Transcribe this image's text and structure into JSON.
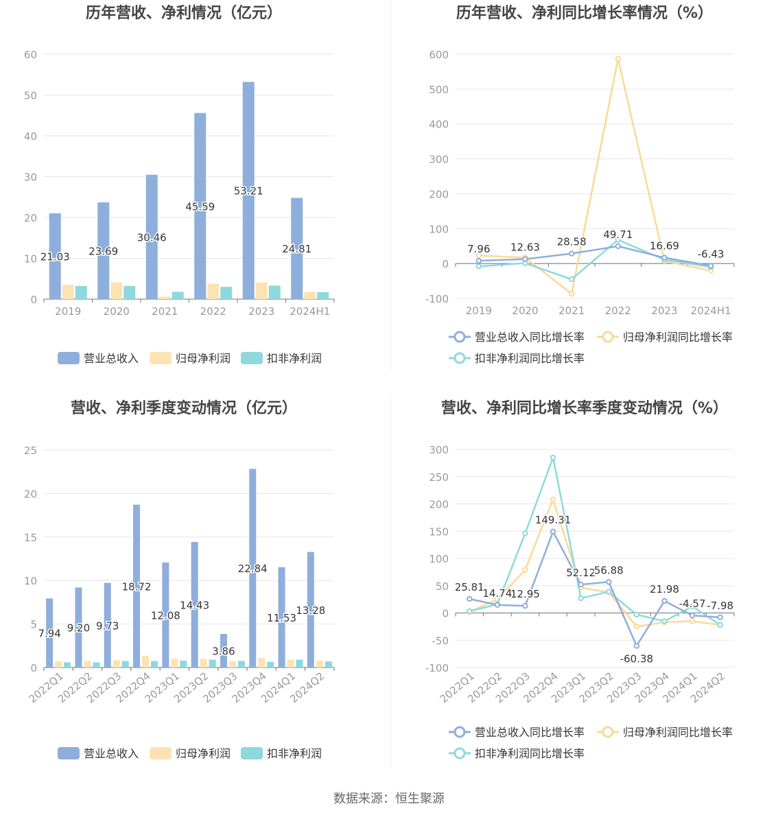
{
  "colors": {
    "revenue": "#8eaedc",
    "net_profit": "#fde3b4",
    "deducted_profit": "#8dd9dc",
    "revenue_line": "#8eaedc",
    "net_profit_line": "#fcd994",
    "deducted_profit_line": "#8dd9dc",
    "grid": "#e6e6ec",
    "axis_text": "#999999",
    "title": "#444444",
    "label": "#333333"
  },
  "footer": "数据来源：恒生聚源",
  "chart_data": [
    {
      "id": "annual-bar",
      "type": "bar",
      "title": "历年营收、净利情况（亿元）",
      "categories": [
        "2019",
        "2020",
        "2021",
        "2022",
        "2023",
        "2024H1"
      ],
      "ylim": [
        0,
        60
      ],
      "yticks": [
        0,
        10,
        20,
        30,
        40,
        50,
        60
      ],
      "grid": true,
      "legend_position": "bottom",
      "series": [
        {
          "name": "营业总收入",
          "values": [
            21.03,
            23.69,
            30.46,
            45.59,
            53.21,
            24.81
          ],
          "labels": [
            "21.03",
            "23.69",
            "30.46",
            "45.59",
            "53.21",
            "24.81"
          ]
        },
        {
          "name": "归母净利润",
          "values": [
            3.5,
            4.1,
            0.6,
            3.8,
            4.1,
            1.8
          ]
        },
        {
          "name": "扣非净利润",
          "values": [
            3.2,
            3.2,
            1.8,
            3.0,
            3.3,
            1.7
          ]
        }
      ]
    },
    {
      "id": "annual-line",
      "type": "line",
      "title": "历年营收、净利同比增长率情况（%）",
      "categories": [
        "2019",
        "2020",
        "2021",
        "2022",
        "2023",
        "2024H1"
      ],
      "ylim": [
        -100,
        600
      ],
      "yticks": [
        -100,
        0,
        100,
        200,
        300,
        400,
        500,
        600
      ],
      "grid": true,
      "legend_position": "bottom",
      "series": [
        {
          "name": "营业总收入同比增长率",
          "values": [
            7.96,
            12.63,
            28.58,
            49.71,
            16.69,
            -6.43
          ],
          "labels": [
            "7.96",
            "12.63",
            "28.58",
            "49.71",
            "16.69",
            "-6.43"
          ]
        },
        {
          "name": "归母净利润同比增长率",
          "values": [
            23,
            17,
            -87,
            587,
            7,
            -20
          ]
        },
        {
          "name": "扣非净利润同比增长率",
          "values": [
            -8,
            1,
            -45,
            68,
            11,
            -10
          ]
        }
      ]
    },
    {
      "id": "quarter-bar",
      "type": "bar",
      "title": "营收、净利季度变动情况（亿元）",
      "categories": [
        "2022Q1",
        "2022Q2",
        "2022Q3",
        "2022Q4",
        "2023Q1",
        "2023Q2",
        "2023Q3",
        "2023Q4",
        "2024Q1",
        "2024Q2"
      ],
      "ylim": [
        0,
        25
      ],
      "yticks": [
        0,
        5,
        10,
        15,
        20,
        25
      ],
      "grid": true,
      "legend_position": "bottom",
      "series": [
        {
          "name": "营业总收入",
          "values": [
            7.94,
            9.2,
            9.73,
            18.72,
            12.08,
            14.43,
            3.86,
            22.84,
            11.53,
            13.28
          ],
          "labels": [
            "7.94",
            "9.20",
            "9.73",
            "18.72",
            "12.08",
            "14.43",
            "3.86",
            "22.84",
            "11.53",
            "13.28"
          ]
        },
        {
          "name": "归母净利润",
          "values": [
            0.7,
            0.75,
            0.85,
            1.35,
            1.0,
            1.0,
            0.7,
            1.1,
            0.9,
            0.8
          ]
        },
        {
          "name": "扣非净利润",
          "values": [
            0.6,
            0.6,
            0.75,
            0.75,
            0.8,
            0.9,
            0.75,
            0.65,
            0.9,
            0.7
          ]
        }
      ]
    },
    {
      "id": "quarter-line",
      "type": "line",
      "title": "营收、净利同比增长率季度变动情况（%）",
      "categories": [
        "2022Q1",
        "2022Q2",
        "2022Q3",
        "2022Q4",
        "2023Q1",
        "2023Q2",
        "2023Q3",
        "2023Q4",
        "2024Q1",
        "2024Q2"
      ],
      "ylim": [
        -100,
        300
      ],
      "yticks": [
        -100,
        -50,
        0,
        50,
        100,
        150,
        200,
        250,
        300
      ],
      "grid": true,
      "legend_position": "bottom",
      "series": [
        {
          "name": "营业总收入同比增长率",
          "values": [
            25.81,
            14.74,
            12.95,
            149.31,
            52.12,
            56.88,
            -60.38,
            21.98,
            -4.57,
            -7.98
          ],
          "labels": [
            "25.81",
            "14.74",
            "12.95",
            "149.31",
            "52.12",
            "56.88",
            "-60.38",
            "21.98",
            "-4.57",
            "-7.98"
          ]
        },
        {
          "name": "归母净利润同比增长率",
          "values": [
            2,
            25,
            79,
            208,
            46,
            38,
            -25,
            -17,
            -15,
            -22
          ]
        },
        {
          "name": "扣非净利润同比增长率",
          "values": [
            3,
            16,
            146,
            285,
            27,
            39,
            -3,
            -15,
            12,
            -22
          ]
        }
      ]
    }
  ]
}
